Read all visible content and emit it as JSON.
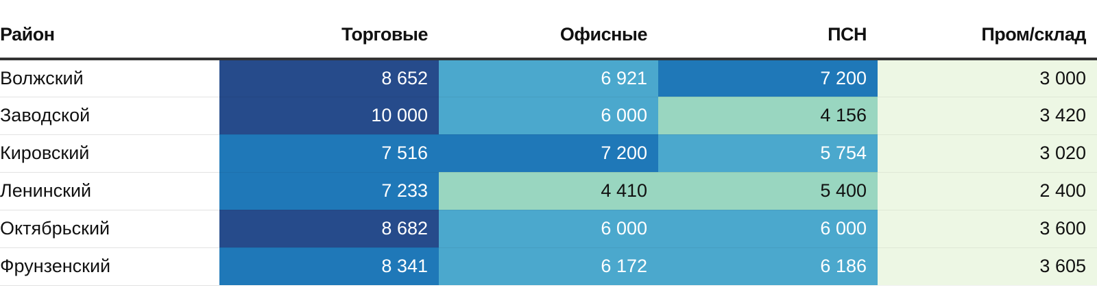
{
  "chart_data": {
    "type": "heatmap",
    "columns": [
      "Район",
      "Торговые",
      "Офисные",
      "ПСН",
      "Пром/склад"
    ],
    "rows": [
      {
        "district": "Волжский",
        "values": [
          8652,
          6921,
          7200,
          3000
        ],
        "labels": [
          "8 652",
          "6 921",
          "7 200",
          "3 000"
        ]
      },
      {
        "district": "Заводской",
        "values": [
          10000,
          6000,
          4156,
          3420
        ],
        "labels": [
          "10 000",
          "6 000",
          "4 156",
          "3 420"
        ]
      },
      {
        "district": "Кировский",
        "values": [
          7516,
          7200,
          5754,
          3020
        ],
        "labels": [
          "7 516",
          "7 200",
          "5 754",
          "3 020"
        ]
      },
      {
        "district": "Ленинский",
        "values": [
          7233,
          4410,
          5400,
          2400
        ],
        "labels": [
          "7 233",
          "4 410",
          "5 400",
          "2 400"
        ]
      },
      {
        "district": "Октябрьский",
        "values": [
          8682,
          6000,
          6000,
          3600
        ],
        "labels": [
          "8 682",
          "6 000",
          "6 000",
          "3 600"
        ]
      },
      {
        "district": "Фрунзенский",
        "values": [
          8341,
          6172,
          6186,
          3605
        ],
        "labels": [
          "8 341",
          "6 172",
          "6 186",
          "3 605"
        ]
      }
    ],
    "color_scale": [
      {
        "min": 8500,
        "color": "#264b8b",
        "text": "#ffffff"
      },
      {
        "min": 7000,
        "color": "#1f78b8",
        "text": "#ffffff"
      },
      {
        "min": 5500,
        "color": "#4ba8cd",
        "text": "#ffffff"
      },
      {
        "min": 4000,
        "color": "#99d6c0",
        "text": "#111111"
      },
      {
        "min": 0,
        "color": "#edf7e4",
        "text": "#111111"
      }
    ]
  }
}
